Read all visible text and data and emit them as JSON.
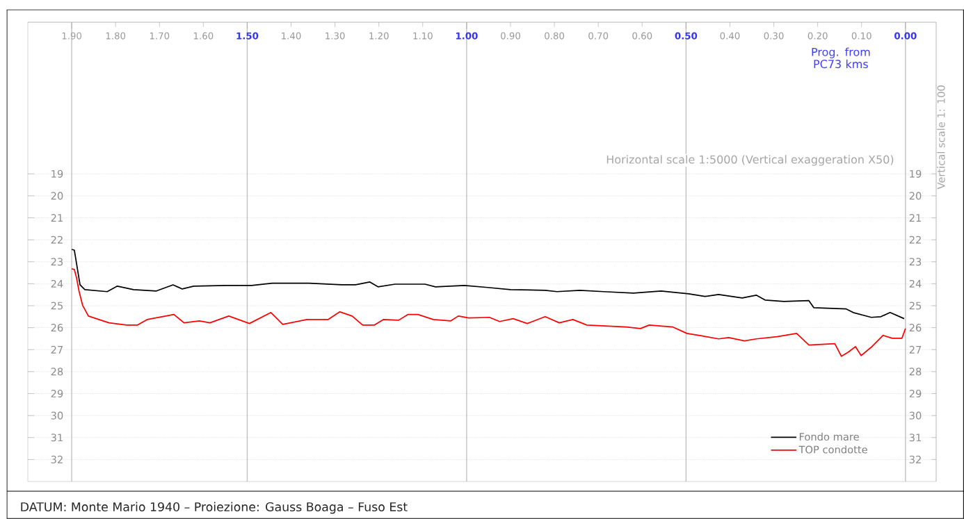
{
  "chart_data": {
    "type": "line",
    "xlabel": "Prog. from PC73 kms",
    "y2label": "Vertical scale 1: 100",
    "annotations": [
      "Horizontal scale 1:5000 (Vertical exaggeration X50)",
      "DATUM: Monte Mario 1940 – Proiezione: Gauss Boaga – Fuso Est"
    ],
    "xlim": [
      2.0,
      -0.07
    ],
    "xticks": [
      {
        "value": 1.9,
        "label": "1.90"
      },
      {
        "value": 1.5,
        "label": "1.50"
      },
      {
        "value": 1.0,
        "label": "1.00"
      },
      {
        "value": 0.5,
        "label": "0.50"
      },
      {
        "value": 0.0,
        "label": "0.00"
      }
    ],
    "x2lim": [
      2.0,
      -0.07
    ],
    "x2ticks": [
      {
        "value": 1.8,
        "label": "1.80"
      },
      {
        "value": 1.7,
        "label": "1.70"
      },
      {
        "value": 1.6,
        "label": "1.60"
      },
      {
        "value": 1.4,
        "label": "1.40"
      },
      {
        "value": 1.3,
        "label": "1.30"
      },
      {
        "value": 1.2,
        "label": "1.20"
      },
      {
        "value": 1.1,
        "label": "1.10"
      },
      {
        "value": 0.9,
        "label": "0.90"
      },
      {
        "value": 0.8,
        "label": "0.80"
      },
      {
        "value": 0.7,
        "label": "0.70"
      },
      {
        "value": 0.6,
        "label": "0.60"
      },
      {
        "value": 0.4,
        "label": "0.40"
      },
      {
        "value": 0.3,
        "label": "0.30"
      },
      {
        "value": 0.2,
        "label": "0.20"
      },
      {
        "value": 0.1,
        "label": "0.10"
      }
    ],
    "ylim": [
      33.0,
      12.1
    ],
    "yticks": [
      19,
      20,
      21,
      22,
      23,
      24,
      25,
      26,
      27,
      28,
      29,
      30,
      31,
      32
    ],
    "y2lim": [
      33.0,
      12.1
    ],
    "y2ticks": [
      19,
      20,
      21,
      22,
      23,
      24,
      25,
      26,
      27,
      28,
      29,
      30,
      31,
      32
    ],
    "grid": true,
    "legend": "bottom right",
    "line_style": "solid",
    "series": [
      {
        "name": "Fondo mare",
        "color": "#000000",
        "x": [
          1.9,
          1.894,
          1.881,
          1.87,
          1.819,
          1.796,
          1.759,
          1.707,
          1.669,
          1.648,
          1.622,
          1.549,
          1.49,
          1.443,
          1.359,
          1.285,
          1.253,
          1.221,
          1.202,
          1.163,
          1.095,
          1.071,
          1.005,
          0.952,
          0.9,
          0.821,
          0.794,
          0.742,
          0.688,
          0.62,
          0.557,
          0.494,
          0.457,
          0.426,
          0.372,
          0.34,
          0.32,
          0.277,
          0.22,
          0.209,
          0.135,
          0.119,
          0.078,
          0.056,
          0.035,
          0.003
        ],
        "values": [
          22.44,
          22.47,
          24.05,
          24.27,
          24.36,
          24.11,
          24.27,
          24.33,
          24.05,
          24.24,
          24.11,
          24.08,
          24.08,
          23.98,
          23.98,
          24.05,
          24.05,
          23.92,
          24.14,
          24.02,
          24.02,
          24.14,
          24.08,
          24.17,
          24.27,
          24.3,
          24.36,
          24.3,
          24.36,
          24.43,
          24.33,
          24.46,
          24.58,
          24.49,
          24.65,
          24.52,
          24.74,
          24.81,
          24.77,
          25.09,
          25.15,
          25.31,
          25.53,
          25.5,
          25.31,
          25.59
        ]
      },
      {
        "name": "TOP condotte",
        "color": "#ff0000",
        "x": [
          1.9,
          1.894,
          1.889,
          1.883,
          1.875,
          1.862,
          1.838,
          1.815,
          1.775,
          1.75,
          1.728,
          1.667,
          1.644,
          1.609,
          1.585,
          1.542,
          1.495,
          1.446,
          1.419,
          1.364,
          1.316,
          1.289,
          1.261,
          1.237,
          1.21,
          1.19,
          1.155,
          1.134,
          1.111,
          1.076,
          1.036,
          1.019,
          0.995,
          0.948,
          0.925,
          0.894,
          0.862,
          0.821,
          0.789,
          0.758,
          0.726,
          0.636,
          0.604,
          0.584,
          0.53,
          0.498,
          0.462,
          0.426,
          0.403,
          0.367,
          0.34,
          0.293,
          0.248,
          0.22,
          0.161,
          0.146,
          0.13,
          0.114,
          0.101,
          0.078,
          0.051,
          0.03,
          0.008,
          0.0
        ],
        "values": [
          23.32,
          23.35,
          23.73,
          24.36,
          24.99,
          25.47,
          25.63,
          25.78,
          25.88,
          25.88,
          25.63,
          25.4,
          25.78,
          25.69,
          25.78,
          25.47,
          25.81,
          25.31,
          25.85,
          25.63,
          25.63,
          25.28,
          25.47,
          25.88,
          25.88,
          25.63,
          25.66,
          25.4,
          25.4,
          25.63,
          25.69,
          25.47,
          25.56,
          25.53,
          25.72,
          25.59,
          25.81,
          25.5,
          25.78,
          25.63,
          25.88,
          25.97,
          26.04,
          25.88,
          25.97,
          26.26,
          26.38,
          26.51,
          26.45,
          26.6,
          26.51,
          26.41,
          26.26,
          26.79,
          26.73,
          27.3,
          27.11,
          26.86,
          27.27,
          26.89,
          26.35,
          26.48,
          26.48,
          26.04
        ]
      }
    ]
  }
}
